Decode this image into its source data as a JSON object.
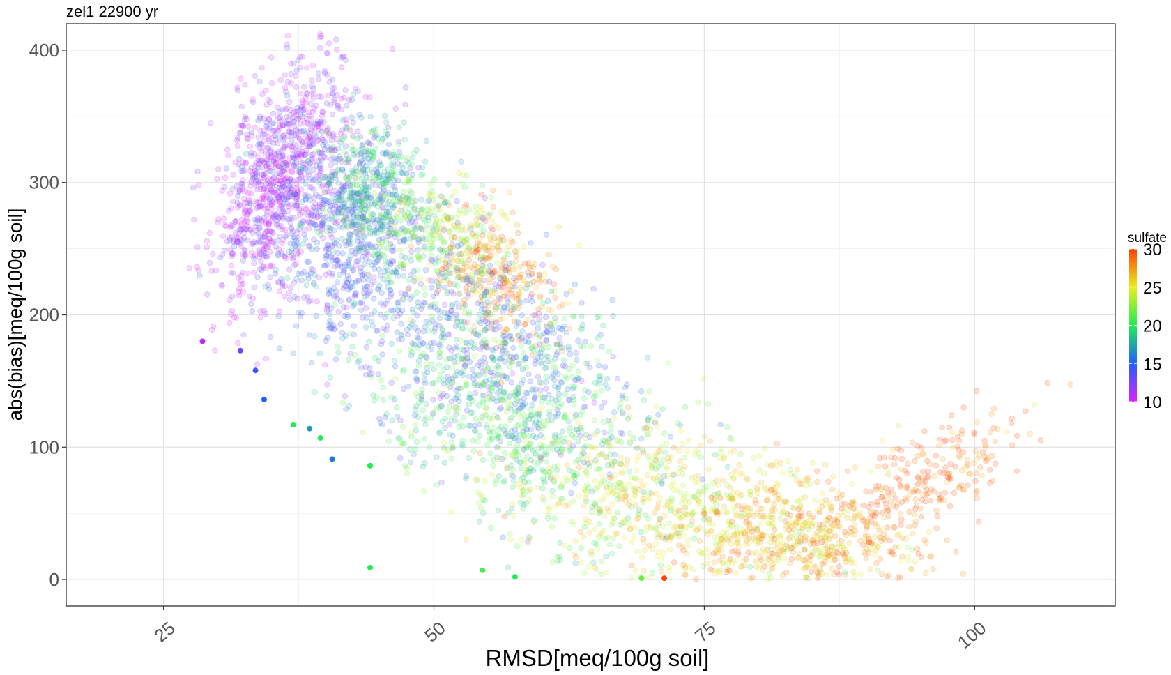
{
  "chart_data": {
    "type": "scatter",
    "title": "zel1   22900  yr",
    "xlabel": "RMSD[meq/100g soil]",
    "ylabel": "abs(bias)[meq/100g soil]",
    "xlim": [
      16,
      113
    ],
    "ylim": [
      -20,
      420
    ],
    "x_ticks": [
      25,
      50,
      75,
      100
    ],
    "y_ticks": [
      0,
      100,
      200,
      300,
      400
    ],
    "grid": true,
    "legend": {
      "title": "sulfate",
      "position": "right",
      "min": 10,
      "max": 30,
      "ticks": [
        10,
        15,
        20,
        25,
        30
      ]
    },
    "highlighted_points": [
      {
        "x": 28.6,
        "y": 180,
        "sulfate": 11
      },
      {
        "x": 32.1,
        "y": 173,
        "sulfate": 13
      },
      {
        "x": 33.5,
        "y": 158,
        "sulfate": 14
      },
      {
        "x": 34.3,
        "y": 136,
        "sulfate": 15
      },
      {
        "x": 37.0,
        "y": 117,
        "sulfate": 20
      },
      {
        "x": 38.5,
        "y": 114,
        "sulfate": 17
      },
      {
        "x": 39.5,
        "y": 107,
        "sulfate": 20
      },
      {
        "x": 40.6,
        "y": 91,
        "sulfate": 16
      },
      {
        "x": 44.1,
        "y": 86,
        "sulfate": 20
      },
      {
        "x": 44.1,
        "y": 9,
        "sulfate": 20
      },
      {
        "x": 54.5,
        "y": 7,
        "sulfate": 21
      },
      {
        "x": 57.5,
        "y": 2,
        "sulfate": 20
      },
      {
        "x": 69.2,
        "y": 1,
        "sulfate": 22
      },
      {
        "x": 71.3,
        "y": 1,
        "sulfate": 30
      }
    ],
    "scatter_clusters": [
      {
        "name": "violet",
        "cx": 35.5,
        "cy": 300,
        "sx": 3.0,
        "sy": 45,
        "corr": 0.55,
        "n": 900,
        "sulfate": 11
      },
      {
        "name": "blue",
        "cx": 41.5,
        "cy": 265,
        "sx": 4.0,
        "sy": 45,
        "corr": -0.2,
        "n": 700,
        "sulfate": 14
      },
      {
        "name": "green-peak",
        "cx": 44.5,
        "cy": 290,
        "sx": 2.5,
        "sy": 25,
        "corr": 0.0,
        "n": 400,
        "sulfate": 19
      },
      {
        "name": "yellow",
        "cx": 50.5,
        "cy": 258,
        "sx": 3.0,
        "sy": 22,
        "corr": -0.2,
        "n": 260,
        "sulfate": 23
      },
      {
        "name": "orange",
        "cx": 56.0,
        "cy": 230,
        "sx": 3.0,
        "sy": 25,
        "corr": -0.3,
        "n": 280,
        "sulfate": 28
      },
      {
        "name": "mid-blue",
        "cx": 55.0,
        "cy": 170,
        "sx": 6.0,
        "sy": 45,
        "corr": -0.35,
        "n": 600,
        "sulfate": 15
      },
      {
        "name": "mid-green",
        "cx": 58.0,
        "cy": 120,
        "sx": 7.0,
        "sy": 45,
        "corr": -0.4,
        "n": 700,
        "sulfate": 20
      },
      {
        "name": "lower-yellow",
        "cx": 72.0,
        "cy": 55,
        "sx": 8.0,
        "sy": 30,
        "corr": -0.35,
        "n": 650,
        "sulfate": 25
      },
      {
        "name": "right-orange",
        "cx": 84.0,
        "cy": 30,
        "sx": 5.5,
        "sy": 22,
        "corr": 0.0,
        "n": 500,
        "sulfate": 27
      },
      {
        "name": "tail-red",
        "cx": 95.0,
        "cy": 70,
        "sx": 5.0,
        "sy": 30,
        "corr": 0.7,
        "n": 260,
        "sulfate": 29
      }
    ]
  }
}
